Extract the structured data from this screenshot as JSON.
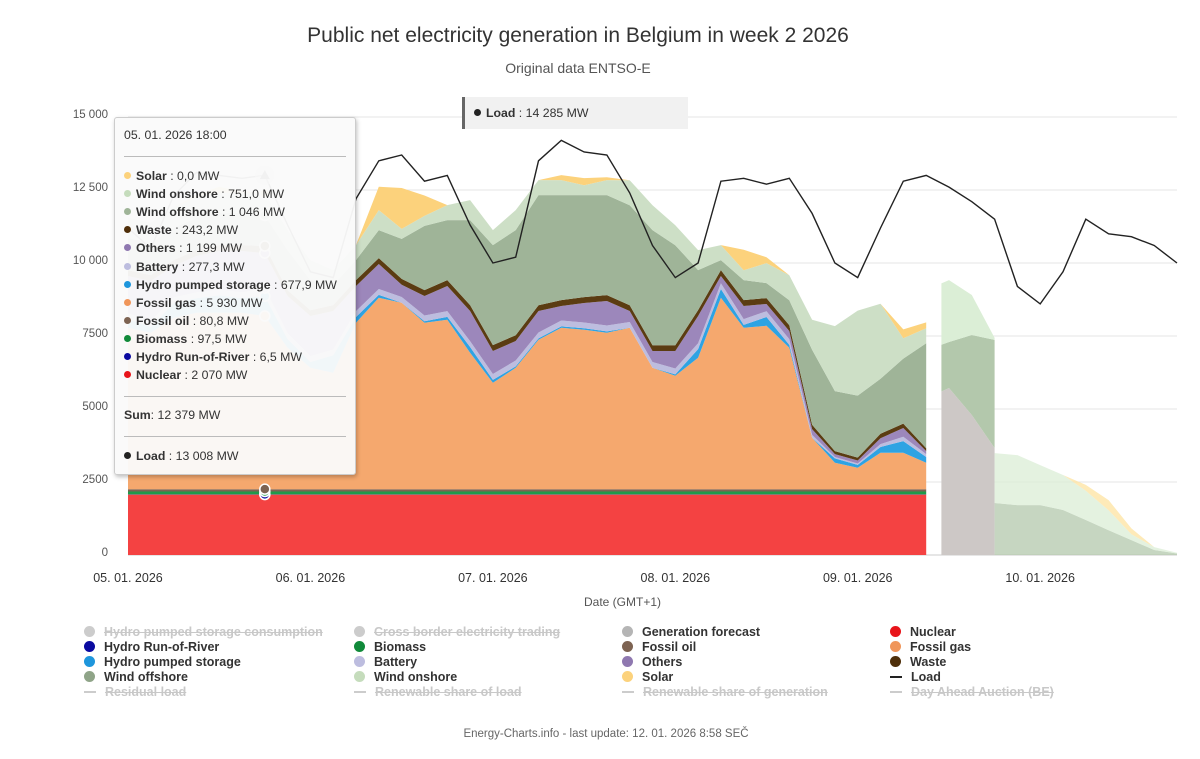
{
  "title": "Public net electricity generation in Belgium in week 2 2026",
  "subtitle": "Original data ENTSO-E",
  "footer": "Energy-Charts.info - last update: 12. 01. 2026 8:58 SEČ",
  "chart_data": {
    "type": "area",
    "stacked": true,
    "xlabel": "Date (GMT+1)",
    "ylabel": "",
    "unit": "MW",
    "ylim": [
      0,
      15000
    ],
    "y_ticks": [
      "0",
      "2500",
      "5000",
      "7500",
      "10 000",
      "12 500",
      "15 000"
    ],
    "y_tick_values": [
      0,
      2500,
      5000,
      7500,
      10000,
      12500,
      15000
    ],
    "x_ticks": [
      "05. 01. 2026",
      "06. 01. 2026",
      "07. 01. 2026",
      "08. 01. 2026",
      "09. 01. 2026",
      "10. 01. 2026"
    ],
    "x_tick_values": [
      "2026-01-05 00:00",
      "2026-01-06 00:00",
      "2026-01-07 00:00",
      "2026-01-08 00:00",
      "2026-01-09 00:00",
      "2026-01-10 00:00"
    ],
    "x_range": [
      "2026-01-05 00:00",
      "2026-01-10 18:00"
    ],
    "grid": "horizontal",
    "legend_position": "bottom",
    "actual": {
      "x": [
        "2026-01-05 00:00",
        "2026-01-05 03:00",
        "2026-01-05 06:00",
        "2026-01-05 09:00",
        "2026-01-05 12:00",
        "2026-01-05 15:00",
        "2026-01-05 18:00",
        "2026-01-05 21:00",
        "2026-01-06 00:00",
        "2026-01-06 03:00",
        "2026-01-06 06:00",
        "2026-01-06 09:00",
        "2026-01-06 12:00",
        "2026-01-06 15:00",
        "2026-01-06 18:00",
        "2026-01-06 21:00",
        "2026-01-07 00:00",
        "2026-01-07 03:00",
        "2026-01-07 06:00",
        "2026-01-07 09:00",
        "2026-01-07 12:00",
        "2026-01-07 15:00",
        "2026-01-07 18:00",
        "2026-01-07 21:00",
        "2026-01-08 00:00",
        "2026-01-08 03:00",
        "2026-01-08 06:00",
        "2026-01-08 09:00",
        "2026-01-08 12:00",
        "2026-01-08 15:00",
        "2026-01-08 18:00",
        "2026-01-08 21:00",
        "2026-01-09 00:00",
        "2026-01-09 03:00",
        "2026-01-09 06:00",
        "2026-01-09 09:00"
      ],
      "series": [
        {
          "name": "Nuclear",
          "color": "#f44242",
          "values": [
            2070,
            2070,
            2070,
            2070,
            2070,
            2070,
            2070,
            2070,
            2070,
            2070,
            2070,
            2070,
            2070,
            2070,
            2070,
            2070,
            2070,
            2070,
            2070,
            2070,
            2070,
            2070,
            2070,
            2070,
            2070,
            2070,
            2070,
            2070,
            2070,
            2070,
            2070,
            2070,
            2070,
            2070,
            2070,
            2070
          ]
        },
        {
          "name": "Hydro Run-of-River",
          "color": "#0a0aa0",
          "values": [
            6.5,
            6.5,
            6.5,
            6.5,
            6.5,
            6.5,
            6.5,
            6.5,
            6.5,
            6.5,
            6.5,
            6.5,
            6.5,
            6.5,
            6.5,
            6.5,
            6.5,
            6.5,
            6.5,
            6.5,
            6.5,
            6.5,
            6.5,
            6.5,
            6.5,
            6.5,
            6.5,
            6.5,
            6.5,
            6.5,
            6.5,
            6.5,
            6.5,
            6.5,
            6.5,
            6.5
          ]
        },
        {
          "name": "Biomass",
          "color": "#1f9a4a",
          "values": [
            97.5,
            97.5,
            97.5,
            97.5,
            97.5,
            97.5,
            97.5,
            97.5,
            97.5,
            97.5,
            97.5,
            97.5,
            97.5,
            97.5,
            97.5,
            97.5,
            97.5,
            97.5,
            97.5,
            97.5,
            97.5,
            97.5,
            97.5,
            97.5,
            97.5,
            97.5,
            97.5,
            97.5,
            97.5,
            97.5,
            97.5,
            97.5,
            97.5,
            97.5,
            97.5,
            97.5
          ]
        },
        {
          "name": "Fossil oil",
          "color": "#7d6352",
          "values": [
            80,
            80,
            80,
            80,
            80,
            80,
            80.8,
            80,
            80,
            80,
            80,
            80,
            80,
            80,
            80,
            80,
            80,
            80,
            80,
            80,
            80,
            80,
            80,
            80,
            80,
            80,
            80,
            80,
            80,
            80,
            80,
            80,
            80,
            80,
            80,
            80
          ]
        },
        {
          "name": "Fossil gas",
          "color": "#f5a86e",
          "values": [
            5526,
            5355,
            5869,
            6040,
            6040,
            6040,
            5930,
            4841,
            4156,
            3985,
            5698,
            6554,
            6383,
            5698,
            5800,
            4670,
            3643,
            4156,
            5115,
            5526,
            5458,
            5355,
            5526,
            4156,
            3882,
            4499,
            6554,
            5526,
            5595,
            4841,
            1759,
            903,
            731,
            1245,
            1245,
            903
          ]
        },
        {
          "name": "Hydro pumped storage",
          "color": "#2ea3e3",
          "values": [
            300,
            200,
            500,
            500,
            600,
            500,
            677.9,
            300,
            200,
            600,
            200,
            100,
            0,
            50,
            100,
            200,
            100,
            50,
            50,
            50,
            50,
            50,
            0,
            0,
            50,
            300,
            300,
            100,
            300,
            100,
            0,
            150,
            100,
            200,
            400,
            200
          ]
        },
        {
          "name": "Battery",
          "color": "#bdbddf",
          "values": [
            200,
            200,
            200,
            200,
            200,
            200,
            277.3,
            200,
            200,
            200,
            200,
            200,
            200,
            200,
            200,
            200,
            200,
            200,
            200,
            200,
            200,
            200,
            200,
            200,
            200,
            200,
            200,
            200,
            200,
            200,
            100,
            50,
            50,
            100,
            150,
            100
          ]
        },
        {
          "name": "Others",
          "color": "#9c87bb",
          "values": [
            1275,
            1375,
            1075,
            1246,
            1318,
            1418,
            1199,
            1275,
            1375,
            1318,
            861,
            859,
            420,
            669,
            859,
            1033,
            790,
            669,
            737,
            498,
            669,
            840,
            376,
            376,
            600,
            933,
            248,
            448,
            248,
            276,
            200,
            100,
            100,
            200,
            300,
            100
          ]
        },
        {
          "name": "Waste",
          "color": "#5b3c12",
          "values": [
            200,
            200,
            200,
            200,
            200,
            200,
            243.2,
            200,
            200,
            200,
            200,
            200,
            200,
            200,
            200,
            200,
            200,
            200,
            200,
            200,
            200,
            200,
            200,
            200,
            200,
            200,
            200,
            200,
            200,
            200,
            150,
            100,
            100,
            150,
            150,
            100
          ]
        },
        {
          "name": "Wind offshore",
          "color": "#9fb498",
          "values": [
            1100,
            1100,
            1100,
            1100,
            1100,
            1100,
            1046,
            1370,
            1027,
            685,
            685,
            960,
            1370,
            2200,
            2055,
            2911,
            3425,
            3596,
            3768,
            3596,
            3493,
            3425,
            3425,
            3939,
            3425,
            1370,
            342,
            685,
            514,
            856,
            2569,
            2055,
            2123,
            1884,
            2226,
            3596
          ]
        },
        {
          "name": "Wind onshore",
          "color": "#cddfc6",
          "values": [
            700,
            700,
            700,
            700,
            700,
            700,
            751,
            685,
            685,
            514,
            514,
            685,
            342,
            342,
            514,
            685,
            514,
            685,
            514,
            514,
            342,
            514,
            856,
            856,
            685,
            685,
            514,
            342,
            685,
            856,
            1027,
            2226,
            2911,
            2569,
            700,
            514
          ]
        },
        {
          "name": "Solar",
          "color": "#fcd27c",
          "values": [
            0,
            0,
            0,
            100,
            200,
            50,
            0,
            0,
            0,
            0,
            0,
            800,
            1400,
            700,
            0,
            0,
            0,
            0,
            0,
            171,
            240,
            100,
            0,
            0,
            0,
            0,
            0,
            700,
            200,
            0,
            0,
            0,
            0,
            0,
            300,
            200
          ]
        }
      ]
    },
    "forecast_a": {
      "x": [
        "2026-01-09 11:00",
        "2026-01-09 12:00",
        "2026-01-09 15:00",
        "2026-01-09 18:00"
      ],
      "series": [
        {
          "name": "Generation forecast",
          "color": "#cdc8c6",
          "values": [
            5600,
            5720,
            4795,
            3665
          ]
        },
        {
          "name": "Wind offshore",
          "color": "#b3c8ac",
          "values": [
            1600,
            1575,
            2740,
            3700
          ]
        },
        {
          "name": "Wind onshore",
          "color": "#dbeed6",
          "values": [
            2100,
            2120,
            1370,
            70
          ]
        }
      ]
    },
    "forecast_b": {
      "x": [
        "2026-01-09 18:00",
        "2026-01-09 21:00",
        "2026-01-10 00:00",
        "2026-01-10 03:00",
        "2026-01-10 06:00",
        "2026-01-10 09:00",
        "2026-01-10 12:00",
        "2026-01-10 15:00",
        "2026-01-10 18:00"
      ],
      "series": [
        {
          "name": "Wind offshore",
          "color": "#b3c8ac",
          "values": [
            1780,
            1710,
            1710,
            1540,
            1200,
            850,
            510,
            170,
            50
          ]
        },
        {
          "name": "Wind onshore",
          "color": "#dbeed6",
          "values": [
            1710,
            1710,
            1370,
            1200,
            1000,
            680,
            200,
            100,
            30
          ]
        },
        {
          "name": "Solar",
          "color": "#fde3a0",
          "values": [
            0,
            0,
            0,
            0,
            200,
            350,
            200,
            0,
            0
          ]
        }
      ]
    },
    "load": {
      "name": "Load",
      "color": "#222222",
      "x": [
        "2026-01-05 00:00",
        "2026-01-05 03:00",
        "2026-01-05 06:00",
        "2026-01-05 09:00",
        "2026-01-05 12:00",
        "2026-01-05 15:00",
        "2026-01-05 18:00",
        "2026-01-05 21:00",
        "2026-01-06 00:00",
        "2026-01-06 03:00",
        "2026-01-06 06:00",
        "2026-01-06 09:00",
        "2026-01-06 12:00",
        "2026-01-06 15:00",
        "2026-01-06 18:00",
        "2026-01-06 21:00",
        "2026-01-07 00:00",
        "2026-01-07 03:00",
        "2026-01-07 06:00",
        "2026-01-07 09:00",
        "2026-01-07 12:00",
        "2026-01-07 15:00",
        "2026-01-07 18:00",
        "2026-01-07 21:00",
        "2026-01-08 00:00",
        "2026-01-08 03:00",
        "2026-01-08 06:00",
        "2026-01-08 09:00",
        "2026-01-08 12:00",
        "2026-01-08 15:00",
        "2026-01-08 18:00",
        "2026-01-08 21:00",
        "2026-01-09 00:00",
        "2026-01-09 03:00",
        "2026-01-09 06:00",
        "2026-01-09 09:00",
        "2026-01-09 12:00",
        "2026-01-09 15:00",
        "2026-01-09 18:00",
        "2026-01-09 21:00",
        "2026-01-10 00:00",
        "2026-01-10 03:00",
        "2026-01-10 06:00",
        "2026-01-10 09:00",
        "2026-01-10 12:00",
        "2026-01-10 15:00",
        "2026-01-10 18:00"
      ],
      "values": [
        11200,
        10500,
        12300,
        13100,
        13000,
        12900,
        13008,
        11300,
        9700,
        9500,
        12200,
        13500,
        13700,
        12800,
        13000,
        11300,
        10000,
        10200,
        13500,
        14200,
        13800,
        13700,
        12400,
        10600,
        9500,
        10000,
        12800,
        12900,
        12700,
        12900,
        11700,
        10000,
        9500,
        11200,
        12800,
        13000,
        12600,
        12100,
        11500,
        9200,
        8600,
        9700,
        11500,
        11000,
        10900,
        10600,
        10000
      ]
    },
    "legend": [
      {
        "label": "Hydro pumped storage consumption",
        "color": "#cccccc",
        "kind": "dot",
        "enabled": false
      },
      {
        "label": "Cross border electricity trading",
        "color": "#cccccc",
        "kind": "dot",
        "enabled": false
      },
      {
        "label": "Generation forecast",
        "color": "#b5b5b5",
        "kind": "dot",
        "enabled": true
      },
      {
        "label": "Nuclear",
        "color": "#e8141a",
        "kind": "dot",
        "enabled": true
      },
      {
        "label": "Hydro Run-of-River",
        "color": "#0a0aa0",
        "kind": "dot",
        "enabled": true
      },
      {
        "label": "Biomass",
        "color": "#118a3a",
        "kind": "dot",
        "enabled": true
      },
      {
        "label": "Fossil oil",
        "color": "#7d6352",
        "kind": "dot",
        "enabled": true
      },
      {
        "label": "Fossil gas",
        "color": "#f0965a",
        "kind": "dot",
        "enabled": true
      },
      {
        "label": "Hydro pumped storage",
        "color": "#1e96dc",
        "kind": "dot",
        "enabled": true
      },
      {
        "label": "Battery",
        "color": "#bdbddf",
        "kind": "dot",
        "enabled": true
      },
      {
        "label": "Others",
        "color": "#8f78b0",
        "kind": "dot",
        "enabled": true
      },
      {
        "label": "Waste",
        "color": "#4f2f0a",
        "kind": "dot",
        "enabled": true
      },
      {
        "label": "Wind offshore",
        "color": "#8fa488",
        "kind": "dot",
        "enabled": true
      },
      {
        "label": "Wind onshore",
        "color": "#c5dcbc",
        "kind": "dot",
        "enabled": true
      },
      {
        "label": "Solar",
        "color": "#fcd27c",
        "kind": "dot",
        "enabled": true
      },
      {
        "label": "Load",
        "color": "#222222",
        "kind": "line",
        "enabled": true
      },
      {
        "label": "Residual load",
        "color": "#cccccc",
        "kind": "line",
        "enabled": false
      },
      {
        "label": "Renewable share of load",
        "color": "#cccccc",
        "kind": "line",
        "enabled": false
      },
      {
        "label": "Renewable share of generation",
        "color": "#cccccc",
        "kind": "line",
        "enabled": false
      },
      {
        "label": "Day Ahead Auction (BE)",
        "color": "#cccccc",
        "kind": "line",
        "enabled": false
      }
    ]
  },
  "tooltip": {
    "time": "05. 01. 2026 18:00",
    "rows": [
      {
        "label": "Solar",
        "value": ": 0,0 MW",
        "color": "#fcd27c"
      },
      {
        "label": "Wind onshore",
        "value": ": 751,0 MW",
        "color": "#c5dcbc"
      },
      {
        "label": "Wind offshore",
        "value": ": 1 046 MW",
        "color": "#9fb498"
      },
      {
        "label": "Waste",
        "value": ": 243,2 MW",
        "color": "#4f2f0a"
      },
      {
        "label": "Others",
        "value": ": 1 199 MW",
        "color": "#8f78b0"
      },
      {
        "label": "Battery",
        "value": ": 277,3 MW",
        "color": "#bdbddf"
      },
      {
        "label": "Hydro pumped storage",
        "value": ": 677,9 MW",
        "color": "#1e96dc"
      },
      {
        "label": "Fossil gas",
        "value": ": 5 930 MW",
        "color": "#f0965a"
      },
      {
        "label": "Fossil oil",
        "value": ": 80,8 MW",
        "color": "#7d6352"
      },
      {
        "label": "Biomass",
        "value": ": 97,5 MW",
        "color": "#118a3a"
      },
      {
        "label": "Hydro Run-of-River",
        "value": ": 6,5 MW",
        "color": "#0a0aa0"
      },
      {
        "label": "Nuclear",
        "value": ": 2 070 MW",
        "color": "#e8141a"
      }
    ],
    "sum_label": "Sum",
    "sum_value": ": 12 379 MW",
    "load_label": "Load",
    "load_value": ": 13 008 MW"
  },
  "crosshair_label": {
    "label": "Load",
    "value": ": 14 285 MW"
  }
}
